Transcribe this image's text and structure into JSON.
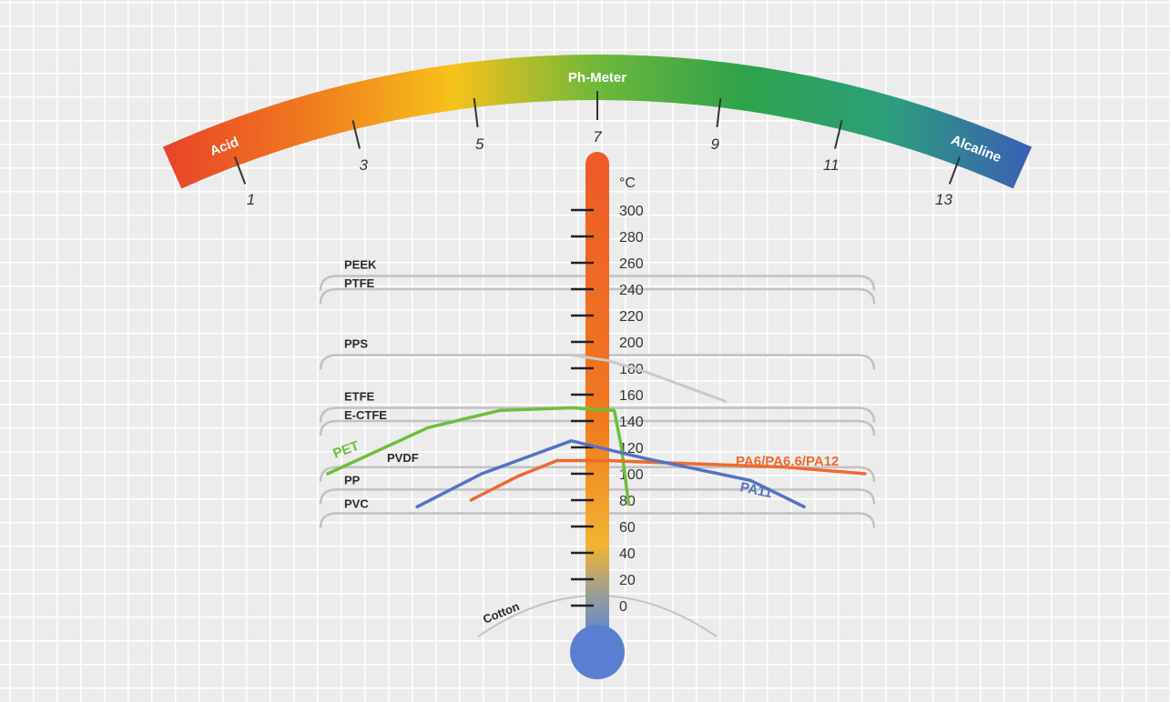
{
  "chart_data": {
    "type": "line",
    "title": "Ph-Meter",
    "ph_scale": {
      "range": [
        0,
        14
      ],
      "tick_labels": [
        "1",
        "3",
        "5",
        "7",
        "9",
        "11",
        "13"
      ],
      "left_label": "Acid",
      "right_label": "Alcaline",
      "colors": [
        "#e8432a",
        "#f07a1e",
        "#f7c21a",
        "#6fb83a",
        "#2ea34a",
        "#2c9f7a",
        "#3a5fb5"
      ]
    },
    "temperature_scale": {
      "unit": "°C",
      "range": [
        0,
        300
      ],
      "tick_labels": [
        "0",
        "20",
        "40",
        "60",
        "80",
        "100",
        "120",
        "140",
        "160",
        "180",
        "200",
        "220",
        "240",
        "260",
        "280",
        "300"
      ]
    },
    "materials": [
      {
        "name": "PEEK",
        "temperature": 250
      },
      {
        "name": "PTFE",
        "temperature": 240
      },
      {
        "name": "PPS",
        "temperature": 190
      },
      {
        "name": "ETFE",
        "temperature": 150
      },
      {
        "name": "E-CTFE",
        "temperature": 140
      },
      {
        "name": "PVDF",
        "temperature": 105
      },
      {
        "name": "PP",
        "temperature": 88
      },
      {
        "name": "PVC",
        "temperature": 70
      }
    ],
    "series": [
      {
        "name": "PET",
        "color": "#6cbf3a",
        "ph": [
          0.2,
          3,
          5,
          7,
          8.2,
          8.4,
          8.6
        ],
        "temperature": [
          100,
          135,
          148,
          150,
          148,
          120,
          77
        ]
      },
      {
        "name": "PVDF",
        "color": "#c9c9c9",
        "ph": [
          7,
          8,
          9,
          10,
          11.3
        ],
        "temperature": [
          190,
          186,
          178,
          168,
          155
        ]
      },
      {
        "name": "PA6/PA6.6/PA12",
        "color": "#ee6a30",
        "ph": [
          4.2,
          5.5,
          6.6,
          7,
          8,
          13,
          15.2
        ],
        "temperature": [
          80,
          98,
          110,
          110,
          110,
          105,
          100
        ]
      },
      {
        "name": "PA11",
        "color": "#5472c6",
        "ph": [
          2.7,
          4.5,
          7,
          9,
          12,
          13.5
        ],
        "temperature": [
          75,
          100,
          125,
          112,
          95,
          75
        ]
      }
    ],
    "other_labels": [
      "Cotton"
    ]
  }
}
